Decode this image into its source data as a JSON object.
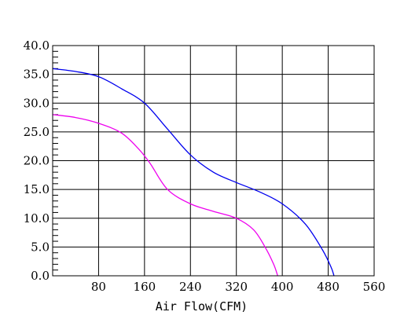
{
  "chart_data": {
    "type": "line",
    "xlabel": "Air Flow(CFM)",
    "ylabel": "",
    "xlim": [
      0,
      560
    ],
    "ylim": [
      0,
      40
    ],
    "x_ticks": [
      {
        "value": 80,
        "label": "80"
      },
      {
        "value": 160,
        "label": "160"
      },
      {
        "value": 240,
        "label": "240"
      },
      {
        "value": 320,
        "label": "320"
      },
      {
        "value": 400,
        "label": "400"
      },
      {
        "value": 480,
        "label": "480"
      },
      {
        "value": 560,
        "label": "560"
      }
    ],
    "y_ticks": [
      {
        "value": 0,
        "label": "0.0"
      },
      {
        "value": 5,
        "label": "5.0"
      },
      {
        "value": 10,
        "label": "10.0"
      },
      {
        "value": 15,
        "label": "15.0"
      },
      {
        "value": 20,
        "label": "20.0"
      },
      {
        "value": 25,
        "label": "25.0"
      },
      {
        "value": 30,
        "label": "30.0"
      },
      {
        "value": 35,
        "label": "35.0"
      },
      {
        "value": 40,
        "label": "40.0"
      }
    ],
    "grid": true,
    "series": [
      {
        "color": "#0000ee",
        "points": [
          [
            0,
            36.0
          ],
          [
            40,
            35.5
          ],
          [
            80,
            34.6
          ],
          [
            120,
            32.5
          ],
          [
            160,
            30.0
          ],
          [
            200,
            25.5
          ],
          [
            240,
            21.0
          ],
          [
            280,
            18.0
          ],
          [
            320,
            16.2
          ],
          [
            360,
            14.6
          ],
          [
            400,
            12.5
          ],
          [
            440,
            9.0
          ],
          [
            470,
            4.5
          ],
          [
            485,
            1.5
          ],
          [
            490,
            0
          ]
        ]
      },
      {
        "color": "#ee00ee",
        "points": [
          [
            0,
            28.0
          ],
          [
            40,
            27.5
          ],
          [
            80,
            26.5
          ],
          [
            120,
            24.8
          ],
          [
            150,
            22.0
          ],
          [
            170,
            19.5
          ],
          [
            200,
            15.0
          ],
          [
            240,
            12.5
          ],
          [
            280,
            11.2
          ],
          [
            320,
            10.0
          ],
          [
            350,
            8.0
          ],
          [
            370,
            5.0
          ],
          [
            385,
            2.0
          ],
          [
            392,
            0
          ]
        ]
      }
    ]
  }
}
